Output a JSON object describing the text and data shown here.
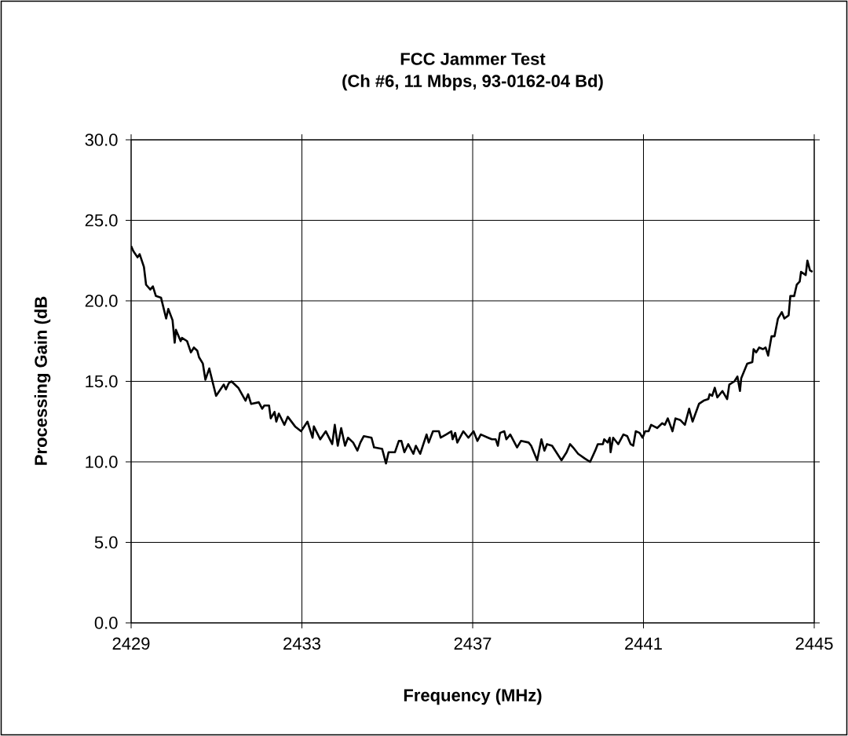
{
  "chart_data": {
    "type": "line",
    "title": "FCC Jammer Test",
    "subtitle": "(Ch #6, 11 Mbps, 93-0162-04 Bd)",
    "xlabel": "Frequency (MHz)",
    "ylabel": "Processing Gain (dB",
    "xlim": [
      2429,
      2445
    ],
    "ylim": [
      0,
      30
    ],
    "xticks": [
      2429,
      2433,
      2437,
      2441,
      2445
    ],
    "yticks": [
      {
        "value": 0,
        "label": "0.0"
      },
      {
        "value": 5,
        "label": "5.0"
      },
      {
        "value": 10,
        "label": "10.0"
      },
      {
        "value": 15,
        "label": "15.0"
      },
      {
        "value": 20,
        "label": "20.0"
      },
      {
        "value": 25,
        "label": "25.0"
      },
      {
        "value": 30,
        "label": "30.0"
      }
    ],
    "grid": true,
    "x": [
      2429.0,
      2429.05,
      2429.15,
      2429.2,
      2429.3,
      2429.35,
      2429.45,
      2429.51,
      2429.58,
      2429.7,
      2429.82,
      2429.87,
      2429.97,
      2430.02,
      2430.05,
      2430.16,
      2430.19,
      2430.31,
      2430.4,
      2430.47,
      2430.55,
      2430.59,
      2430.68,
      2430.74,
      2430.83,
      2430.99,
      2431.17,
      2431.22,
      2431.29,
      2431.35,
      2431.51,
      2431.68,
      2431.74,
      2431.81,
      2431.99,
      2432.07,
      2432.12,
      2432.23,
      2432.27,
      2432.36,
      2432.4,
      2432.46,
      2432.59,
      2432.67,
      2432.84,
      2432.98,
      2433.13,
      2433.25,
      2433.28,
      2433.43,
      2433.56,
      2433.71,
      2433.77,
      2433.84,
      2433.92,
      2434.01,
      2434.08,
      2434.2,
      2434.3,
      2434.37,
      2434.45,
      2434.63,
      2434.69,
      2434.88,
      2434.97,
      2435.03,
      2435.18,
      2435.27,
      2435.33,
      2435.4,
      2435.49,
      2435.61,
      2435.67,
      2435.77,
      2435.92,
      2435.97,
      2436.07,
      2436.21,
      2436.25,
      2436.38,
      2436.5,
      2436.53,
      2436.59,
      2436.64,
      2436.78,
      2436.9,
      2437.02,
      2437.11,
      2437.19,
      2437.36,
      2437.45,
      2437.54,
      2437.59,
      2437.64,
      2437.74,
      2437.79,
      2437.88,
      2438.04,
      2438.13,
      2438.31,
      2438.37,
      2438.51,
      2438.61,
      2438.68,
      2438.74,
      2438.86,
      2439.08,
      2439.2,
      2439.28,
      2439.35,
      2439.47,
      2439.63,
      2439.75,
      2439.87,
      2439.93,
      2440.05,
      2440.08,
      2440.16,
      2440.21,
      2440.23,
      2440.29,
      2440.41,
      2440.53,
      2440.62,
      2440.7,
      2440.76,
      2440.82,
      2440.91,
      2440.98,
      2441.04,
      2441.12,
      2441.18,
      2441.32,
      2441.44,
      2441.5,
      2441.57,
      2441.68,
      2441.75,
      2441.86,
      2441.97,
      2442.07,
      2442.15,
      2442.3,
      2442.41,
      2442.52,
      2442.55,
      2442.61,
      2442.67,
      2442.73,
      2442.85,
      2442.96,
      2443.01,
      2443.13,
      2443.2,
      2443.26,
      2443.29,
      2443.43,
      2443.55,
      2443.58,
      2443.64,
      2443.71,
      2443.8,
      2443.86,
      2443.92,
      2444.0,
      2444.07,
      2444.15,
      2444.24,
      2444.3,
      2444.4,
      2444.44,
      2444.53,
      2444.59,
      2444.66,
      2444.69,
      2444.8,
      2444.84,
      2444.9,
      2444.96
    ],
    "series": [
      {
        "color": "#000000",
        "values": [
          23.4,
          23.1,
          22.7,
          22.9,
          22.1,
          21.0,
          20.7,
          20.9,
          20.3,
          20.2,
          18.9,
          19.5,
          18.8,
          17.4,
          18.2,
          17.5,
          17.7,
          17.5,
          16.8,
          17.1,
          16.9,
          16.5,
          16.1,
          15.1,
          15.8,
          14.1,
          14.8,
          14.5,
          14.9,
          15.0,
          14.6,
          13.8,
          14.2,
          13.6,
          13.7,
          13.3,
          13.5,
          13.5,
          12.7,
          13.1,
          12.5,
          13.0,
          12.3,
          12.8,
          12.2,
          11.9,
          12.5,
          11.5,
          12.2,
          11.4,
          11.9,
          11.1,
          12.3,
          11.0,
          12.1,
          11.0,
          11.5,
          11.2,
          10.7,
          11.2,
          11.6,
          11.5,
          10.9,
          10.8,
          9.9,
          10.6,
          10.6,
          11.3,
          11.3,
          10.6,
          11.1,
          10.5,
          11.0,
          10.5,
          11.7,
          11.2,
          11.9,
          11.9,
          11.5,
          11.7,
          11.9,
          11.4,
          11.8,
          11.2,
          11.9,
          11.5,
          11.9,
          11.3,
          11.7,
          11.5,
          11.4,
          11.4,
          11.0,
          11.8,
          11.9,
          11.4,
          11.7,
          10.9,
          11.3,
          11.2,
          11.0,
          10.1,
          11.4,
          10.7,
          11.1,
          11.0,
          10.1,
          10.6,
          11.1,
          10.9,
          10.5,
          10.2,
          10.0,
          10.7,
          11.1,
          11.1,
          11.4,
          11.2,
          11.5,
          10.6,
          11.5,
          11.1,
          11.7,
          11.6,
          11.1,
          11.0,
          11.9,
          11.8,
          11.5,
          11.9,
          11.9,
          12.3,
          12.1,
          12.4,
          12.3,
          12.7,
          11.9,
          12.7,
          12.6,
          12.3,
          13.3,
          12.5,
          13.6,
          13.8,
          13.9,
          14.2,
          14.1,
          14.6,
          14.0,
          14.4,
          13.9,
          14.8,
          15.0,
          15.3,
          14.4,
          15.2,
          16.1,
          16.2,
          17.0,
          16.8,
          17.1,
          17.0,
          17.1,
          16.6,
          17.8,
          17.8,
          18.9,
          19.3,
          18.9,
          19.1,
          20.3,
          20.3,
          21.0,
          21.2,
          21.8,
          21.6,
          22.5,
          21.9,
          21.8
        ]
      }
    ]
  }
}
